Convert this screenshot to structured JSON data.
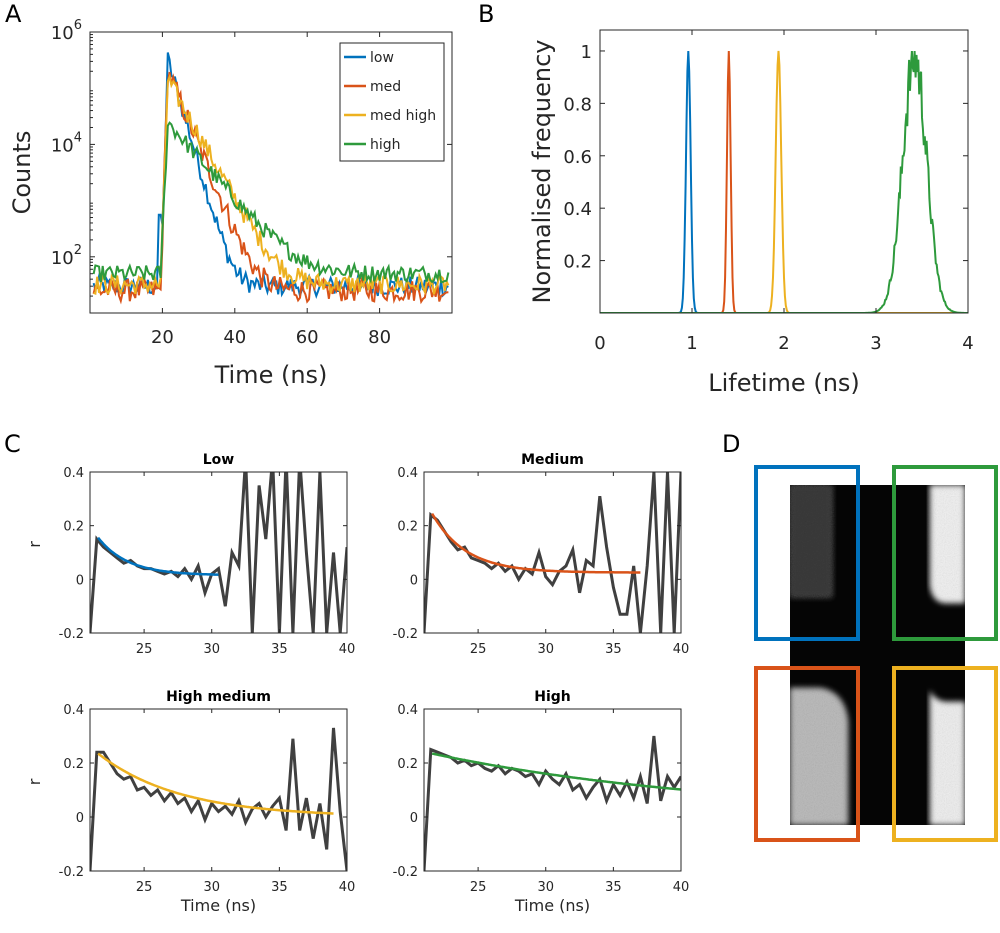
{
  "panels": {
    "A": {
      "letter": "A"
    },
    "B": {
      "letter": "B"
    },
    "C": {
      "letter": "C"
    },
    "D": {
      "letter": "D"
    }
  },
  "colors": {
    "low": "#0072BD",
    "med": "#D95319",
    "med_high": "#EDB120",
    "high": "#2E9A3C",
    "data_gray": "#404040"
  },
  "chart_data": [
    {
      "id": "A",
      "type": "line",
      "xlabel": "Time (ns)",
      "ylabel": "Counts",
      "xlim": [
        0,
        100
      ],
      "ylim_log10": [
        1,
        6
      ],
      "yscale": "log",
      "xticks": [
        20,
        40,
        60,
        80
      ],
      "yticks": [
        {
          "exp": 2,
          "base": "10",
          "sup": "2"
        },
        {
          "exp": 4,
          "base": "10",
          "sup": "4"
        },
        {
          "exp": 6,
          "base": "10",
          "sup": "6"
        }
      ],
      "legend": {
        "placement": "top-right",
        "entries": [
          "low",
          "med",
          "med high",
          "high"
        ]
      },
      "series": [
        {
          "name": "low",
          "color_key": "low",
          "baseline": 30,
          "peak": 320000,
          "tau": 2.0,
          "noise_amp": 0.35
        },
        {
          "name": "med",
          "color_key": "med",
          "baseline": 25,
          "peak": 200000,
          "tau": 2.8,
          "noise_amp": 0.4
        },
        {
          "name": "med high",
          "color_key": "med_high",
          "baseline": 32,
          "peak": 140000,
          "tau": 3.8,
          "noise_amp": 0.35
        },
        {
          "name": "high",
          "color_key": "high",
          "baseline": 50,
          "peak": 25000,
          "tau": 5.8,
          "noise_amp": 0.3
        }
      ],
      "pulse_start_ns": 19.5,
      "pulse_peak_ns": 21.5,
      "grid": false
    },
    {
      "id": "B",
      "type": "line",
      "xlabel": "Lifetime (ns)",
      "ylabel": "Normalised frequency",
      "xlim": [
        0,
        4
      ],
      "ylim": [
        0,
        1.08
      ],
      "xticks": [
        0,
        1,
        2,
        3,
        4
      ],
      "yticks": [
        0.2,
        0.4,
        0.6,
        0.8,
        1
      ],
      "series": [
        {
          "name": "low",
          "color_key": "low",
          "center": 0.96,
          "width": 0.025
        },
        {
          "name": "med",
          "color_key": "med",
          "center": 1.4,
          "width": 0.02
        },
        {
          "name": "med high",
          "color_key": "med_high",
          "center": 1.94,
          "width": 0.03
        },
        {
          "name": "high",
          "color_key": "high",
          "center": 3.42,
          "width": 0.13,
          "noisy": true
        }
      ],
      "grid": false
    },
    {
      "id": "C1",
      "type": "line",
      "title": "Low",
      "xlabel": "",
      "ylabel": "r",
      "xlim": [
        21,
        40
      ],
      "ylim": [
        -0.2,
        0.4
      ],
      "xticks": [
        25,
        30,
        35,
        40
      ],
      "yticks": [
        -0.2,
        0,
        0.2,
        0.4
      ],
      "fit": {
        "color_key": "low",
        "x_end": 30.5,
        "a": 0.14,
        "tau": 2.2,
        "c": 0.015
      },
      "data": {
        "x": [
          21,
          21.5,
          22,
          22.5,
          23,
          23.5,
          24,
          24.5,
          25,
          25.5,
          26,
          26.5,
          27,
          27.5,
          28,
          28.5,
          29,
          29.5,
          30,
          30.5,
          31,
          31.5,
          32,
          32.5,
          33,
          33.5,
          34,
          34.5,
          35,
          35.5,
          36,
          36.5,
          37,
          37.5,
          38,
          38.5,
          39,
          39.5,
          40
        ],
        "y": [
          -0.2,
          0.15,
          0.12,
          0.1,
          0.08,
          0.06,
          0.07,
          0.05,
          0.04,
          0.04,
          0.03,
          0.02,
          0.03,
          0.01,
          0.04,
          0.0,
          0.05,
          -0.05,
          0.02,
          0.04,
          -0.1,
          0.1,
          0.05,
          0.45,
          -0.2,
          0.35,
          0.15,
          0.45,
          -0.2,
          0.45,
          -0.2,
          0.45,
          0.1,
          -0.2,
          0.4,
          -0.2,
          0.1,
          -0.2,
          0.12
        ]
      }
    },
    {
      "id": "C2",
      "type": "line",
      "title": "Medium",
      "xlabel": "",
      "ylabel": "",
      "xlim": [
        21,
        40
      ],
      "ylim": [
        -0.2,
        0.4
      ],
      "xticks": [
        25,
        30,
        35,
        40
      ],
      "yticks": [
        -0.2,
        0,
        0.2,
        0.4
      ],
      "fit": {
        "color_key": "med",
        "x_end": 37,
        "a": 0.22,
        "tau": 2.5,
        "c": 0.025
      },
      "data": {
        "x": [
          21,
          21.5,
          22,
          22.5,
          23,
          23.5,
          24,
          24.5,
          25,
          25.5,
          26,
          26.5,
          27,
          27.5,
          28,
          28.5,
          29,
          29.5,
          30,
          30.5,
          31,
          31.5,
          32,
          32.5,
          33,
          33.5,
          34,
          34.5,
          35,
          35.5,
          36,
          36.5,
          37,
          37.5,
          38,
          38.5,
          39,
          39.5,
          40
        ],
        "y": [
          -0.2,
          0.24,
          0.22,
          0.18,
          0.14,
          0.11,
          0.12,
          0.08,
          0.07,
          0.06,
          0.04,
          0.06,
          0.03,
          0.05,
          0.0,
          0.04,
          0.02,
          0.1,
          0.01,
          -0.02,
          0.03,
          0.05,
          0.11,
          -0.05,
          0.07,
          0.05,
          0.31,
          0.12,
          -0.03,
          -0.13,
          -0.13,
          0.05,
          -0.2,
          0.05,
          0.4,
          -0.2,
          0.4,
          -0.2,
          0.4
        ]
      }
    },
    {
      "id": "C3",
      "type": "line",
      "title": "High medium",
      "xlabel": "Time (ns)",
      "ylabel": "r",
      "xlim": [
        21,
        40
      ],
      "ylim": [
        -0.2,
        0.4
      ],
      "xticks": [
        25,
        30,
        35,
        40
      ],
      "yticks": [
        -0.2,
        0,
        0.2,
        0.4
      ],
      "fit": {
        "color_key": "med_high",
        "x_end": 39,
        "a": 0.235,
        "tau": 6.0,
        "c": 0.0
      },
      "data": {
        "x": [
          21,
          21.5,
          22,
          22.5,
          23,
          23.5,
          24,
          24.5,
          25,
          25.5,
          26,
          26.5,
          27,
          27.5,
          28,
          28.5,
          29,
          29.5,
          30,
          30.5,
          31,
          31.5,
          32,
          32.5,
          33,
          33.5,
          34,
          34.5,
          35,
          35.5,
          36,
          36.5,
          37,
          37.5,
          38,
          38.5,
          39,
          39.5,
          40
        ],
        "y": [
          -0.2,
          0.24,
          0.24,
          0.2,
          0.16,
          0.14,
          0.15,
          0.1,
          0.11,
          0.08,
          0.1,
          0.06,
          0.09,
          0.05,
          0.07,
          0.02,
          0.06,
          -0.01,
          0.05,
          0.02,
          0.04,
          0.01,
          0.06,
          -0.02,
          0.03,
          0.05,
          0.0,
          0.04,
          0.07,
          -0.05,
          0.29,
          -0.05,
          0.07,
          -0.08,
          0.05,
          -0.12,
          0.33,
          0.02,
          -0.2
        ]
      }
    },
    {
      "id": "C4",
      "type": "line",
      "title": "High",
      "xlabel": "Time (ns)",
      "ylabel": "",
      "xlim": [
        21,
        40
      ],
      "ylim": [
        -0.2,
        0.4
      ],
      "xticks": [
        25,
        30,
        35,
        40
      ],
      "yticks": [
        -0.2,
        0,
        0.2,
        0.4
      ],
      "fit": {
        "color_key": "high",
        "x_end": 40,
        "a": 0.235,
        "tau": 22.0,
        "c": 0.0
      },
      "data": {
        "x": [
          21,
          21.5,
          22,
          22.5,
          23,
          23.5,
          24,
          24.5,
          25,
          25.5,
          26,
          26.5,
          27,
          27.5,
          28,
          28.5,
          29,
          29.5,
          30,
          30.5,
          31,
          31.5,
          32,
          32.5,
          33,
          33.5,
          34,
          34.5,
          35,
          35.5,
          36,
          36.5,
          37,
          37.5,
          38,
          38.5,
          39,
          39.5,
          40
        ],
        "y": [
          -0.2,
          0.25,
          0.24,
          0.23,
          0.22,
          0.2,
          0.21,
          0.19,
          0.2,
          0.18,
          0.17,
          0.19,
          0.16,
          0.18,
          0.17,
          0.15,
          0.16,
          0.12,
          0.17,
          0.14,
          0.12,
          0.16,
          0.1,
          0.12,
          0.07,
          0.11,
          0.14,
          0.06,
          0.12,
          0.08,
          0.13,
          0.07,
          0.15,
          0.05,
          0.3,
          0.06,
          0.15,
          0.11,
          0.15
        ]
      }
    }
  ]
}
